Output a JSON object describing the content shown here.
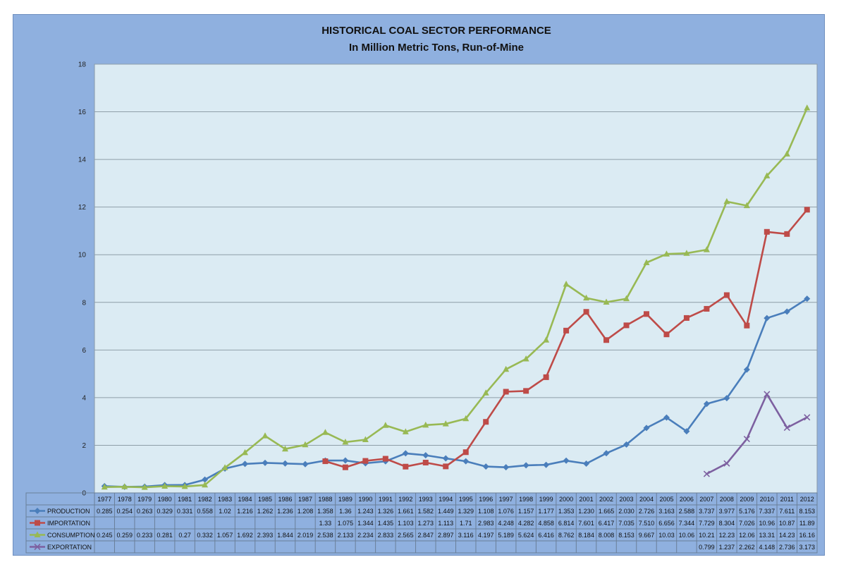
{
  "chart_data": {
    "type": "line",
    "title": "HISTORICAL COAL SECTOR PERFORMANCE",
    "subtitle": "In Million Metric Tons, Run-of-Mine",
    "ylim": [
      0,
      18
    ],
    "yticks": [
      "0",
      "2",
      "4",
      "6",
      "8",
      "10",
      "12",
      "14",
      "16",
      "18"
    ],
    "grid": true,
    "categories": [
      "1977",
      "1978",
      "1979",
      "1980",
      "1981",
      "1982",
      "1983",
      "1984",
      "1985",
      "1986",
      "1987",
      "1988",
      "1989",
      "1990",
      "1991",
      "1992",
      "1993",
      "1994",
      "1995",
      "1996",
      "1997",
      "1998",
      "1999",
      "2000",
      "2001",
      "2002",
      "2003",
      "2004",
      "2005",
      "2006",
      "2007",
      "2008",
      "2009",
      "2010",
      "2011",
      "2012"
    ],
    "series": [
      {
        "name": "PRODUCTION",
        "color": "#4a7ebb",
        "marker": "diamond",
        "values": [
          0.285,
          0.254,
          0.263,
          0.329,
          0.331,
          0.558,
          1.02,
          1.216,
          1.262,
          1.236,
          1.208,
          1.358,
          1.36,
          1.243,
          1.326,
          1.661,
          1.582,
          1.449,
          1.329,
          1.108,
          1.076,
          1.157,
          1.177,
          1.353,
          1.23,
          1.665,
          2.03,
          2.726,
          3.163,
          2.588,
          3.737,
          3.977,
          5.176,
          7.337,
          7.611,
          8.153
        ],
        "labels": [
          "0.285",
          "0.254",
          "0.263",
          "0.329",
          "0.331",
          "0.558",
          "1.02",
          "1.216",
          "1.262",
          "1.236",
          "1.208",
          "1.358",
          "1.36",
          "1.243",
          "1.326",
          "1.661",
          "1.582",
          "1.449",
          "1.329",
          "1.108",
          "1.076",
          "1.157",
          "1.177",
          "1.353",
          "1.230",
          "1.665",
          "2.030",
          "2.726",
          "3.163",
          "2.588",
          "3.737",
          "3.977",
          "5.176",
          "7.337",
          "7.611",
          "8.153"
        ]
      },
      {
        "name": "IMPORTATION",
        "color": "#be4b48",
        "marker": "square",
        "values": [
          null,
          null,
          null,
          null,
          null,
          null,
          null,
          null,
          null,
          null,
          null,
          1.33,
          1.075,
          1.344,
          1.435,
          1.103,
          1.273,
          1.113,
          1.71,
          2.983,
          4.248,
          4.282,
          4.858,
          6.814,
          7.601,
          6.417,
          7.035,
          7.51,
          6.656,
          7.344,
          7.729,
          8.304,
          7.026,
          10.96,
          10.87,
          11.89
        ],
        "labels": [
          "",
          "",
          "",
          "",
          "",
          "",
          "",
          "",
          "",
          "",
          "",
          "1.33",
          "1.075",
          "1.344",
          "1.435",
          "1.103",
          "1.273",
          "1.113",
          "1.71",
          "2.983",
          "4.248",
          "4.282",
          "4.858",
          "6.814",
          "7.601",
          "6.417",
          "7.035",
          "7.510",
          "6.656",
          "7.344",
          "7.729",
          "8.304",
          "7.026",
          "10.96",
          "10.87",
          "11.89"
        ]
      },
      {
        "name": "CONSUMPTION",
        "color": "#98b954",
        "marker": "triangle",
        "values": [
          0.245,
          0.259,
          0.233,
          0.281,
          0.27,
          0.332,
          1.057,
          1.692,
          2.393,
          1.844,
          2.019,
          2.538,
          2.133,
          2.234,
          2.833,
          2.565,
          2.847,
          2.897,
          3.116,
          4.197,
          5.189,
          5.624,
          6.416,
          8.762,
          8.184,
          8.008,
          8.153,
          9.667,
          10.03,
          10.06,
          10.21,
          12.23,
          12.06,
          13.31,
          14.23,
          16.16
        ],
        "labels": [
          "0.245",
          "0.259",
          "0.233",
          "0.281",
          "0.27",
          "0.332",
          "1.057",
          "1.692",
          "2.393",
          "1.844",
          "2.019",
          "2.538",
          "2.133",
          "2.234",
          "2.833",
          "2.565",
          "2.847",
          "2.897",
          "3.116",
          "4.197",
          "5.189",
          "5.624",
          "6.416",
          "8.762",
          "8.184",
          "8.008",
          "8.153",
          "9.667",
          "10.03",
          "10.06",
          "10.21",
          "12.23",
          "12.06",
          "13.31",
          "14.23",
          "16.16"
        ]
      },
      {
        "name": "EXPORTATION",
        "color": "#7d60a0",
        "marker": "x",
        "values": [
          null,
          null,
          null,
          null,
          null,
          null,
          null,
          null,
          null,
          null,
          null,
          null,
          null,
          null,
          null,
          null,
          null,
          null,
          null,
          null,
          null,
          null,
          null,
          null,
          null,
          null,
          null,
          null,
          null,
          null,
          0.799,
          1.237,
          2.262,
          4.148,
          2.736,
          3.173
        ],
        "labels": [
          "",
          "",
          "",
          "",
          "",
          "",
          "",
          "",
          "",
          "",
          "",
          "",
          "",
          "",
          "",
          "",
          "",
          "",
          "",
          "",
          "",
          "",
          "",
          "",
          "",
          "",
          "",
          "",
          "",
          "",
          "0.799",
          "1.237",
          "2.262",
          "4.148",
          "2.736",
          "3.173"
        ]
      }
    ]
  }
}
